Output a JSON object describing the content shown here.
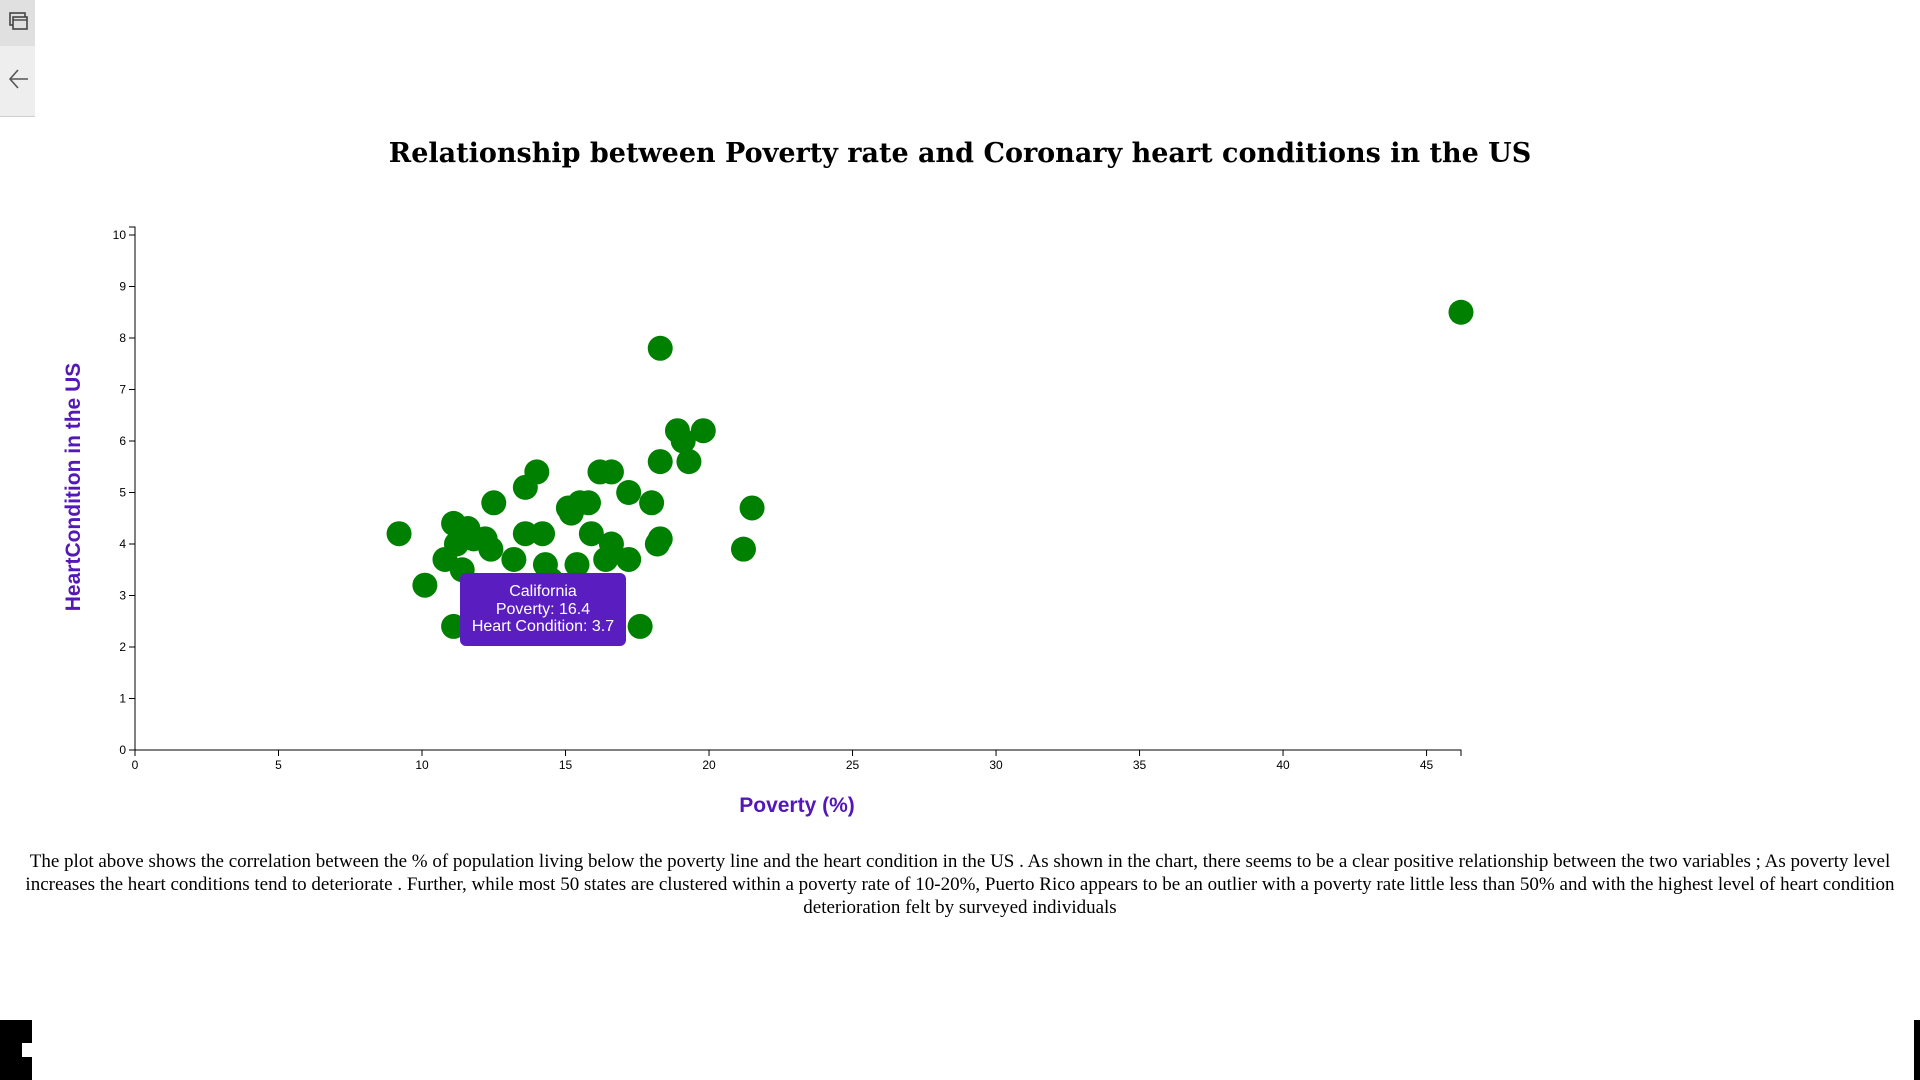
{
  "sidebar": {
    "tabs_icon": "tabs-icon",
    "back_icon": "back-arrow-icon"
  },
  "colors": {
    "point": "#008000",
    "accent": "#5418b8",
    "tooltip_bg": "#5a1ec0"
  },
  "chart_data": {
    "type": "scatter",
    "title": "Relationship between Poverty rate and Coronary heart conditions in the US",
    "xlabel": "Poverty (%)",
    "ylabel": "HeartCondition in the US",
    "xlim": [
      0,
      46.2
    ],
    "ylim": [
      0,
      10
    ],
    "xticks": [
      "0",
      "5",
      "10",
      "15",
      "20",
      "25",
      "30",
      "35",
      "40",
      "45"
    ],
    "yticks": [
      "0",
      "1",
      "2",
      "3",
      "4",
      "5",
      "6",
      "7",
      "8",
      "9",
      "10"
    ],
    "grid": false,
    "points": [
      {
        "x": 9.2,
        "y": 4.2
      },
      {
        "x": 10.1,
        "y": 3.2
      },
      {
        "x": 10.8,
        "y": 3.7
      },
      {
        "x": 11.1,
        "y": 4.4
      },
      {
        "x": 11.2,
        "y": 4.0
      },
      {
        "x": 11.4,
        "y": 3.5
      },
      {
        "x": 11.6,
        "y": 4.3
      },
      {
        "x": 11.8,
        "y": 4.1
      },
      {
        "x": 12.2,
        "y": 4.1
      },
      {
        "x": 12.4,
        "y": 3.9
      },
      {
        "x": 12.5,
        "y": 4.8
      },
      {
        "x": 13.2,
        "y": 3.7
      },
      {
        "x": 13.6,
        "y": 4.2
      },
      {
        "x": 13.6,
        "y": 5.1
      },
      {
        "x": 14.0,
        "y": 5.4
      },
      {
        "x": 14.2,
        "y": 4.2
      },
      {
        "x": 14.3,
        "y": 3.6
      },
      {
        "x": 14.5,
        "y": 3.3
      },
      {
        "x": 15.1,
        "y": 4.7
      },
      {
        "x": 15.2,
        "y": 4.6
      },
      {
        "x": 15.4,
        "y": 3.6
      },
      {
        "x": 15.5,
        "y": 4.8
      },
      {
        "x": 15.8,
        "y": 4.8
      },
      {
        "x": 15.9,
        "y": 4.2
      },
      {
        "x": 16.2,
        "y": 5.4
      },
      {
        "x": 16.4,
        "y": 3.7
      },
      {
        "x": 16.6,
        "y": 4.0
      },
      {
        "x": 16.6,
        "y": 5.4
      },
      {
        "x": 17.2,
        "y": 5.0
      },
      {
        "x": 17.2,
        "y": 3.7
      },
      {
        "x": 17.6,
        "y": 2.4
      },
      {
        "x": 18.0,
        "y": 4.8
      },
      {
        "x": 18.2,
        "y": 4.0
      },
      {
        "x": 18.3,
        "y": 4.1
      },
      {
        "x": 18.3,
        "y": 5.6
      },
      {
        "x": 18.3,
        "y": 7.8
      },
      {
        "x": 18.9,
        "y": 6.2
      },
      {
        "x": 19.1,
        "y": 6.0
      },
      {
        "x": 19.3,
        "y": 5.6
      },
      {
        "x": 19.8,
        "y": 6.2
      },
      {
        "x": 21.2,
        "y": 3.9
      },
      {
        "x": 21.5,
        "y": 4.7
      },
      {
        "x": 11.1,
        "y": 2.4
      },
      {
        "x": 46.2,
        "y": 8.5
      }
    ]
  },
  "tooltip": {
    "name": "California",
    "poverty": "Poverty: 16.4",
    "heart": "Heart Condition: 3.7"
  },
  "caption": "The plot above shows the correlation between the % of population living below the poverty line and the heart condition in the US . As shown in the chart, there seems to be a clear positive relationship between the two variables ; As poverty level increases the heart conditions tend to deteriorate . Further, while most 50 states are clustered within a poverty rate of 10-20%, Puerto Rico appears to be an outlier with a poverty rate little less than 50% and with the highest level of heart condition deterioration felt by surveyed individuals"
}
